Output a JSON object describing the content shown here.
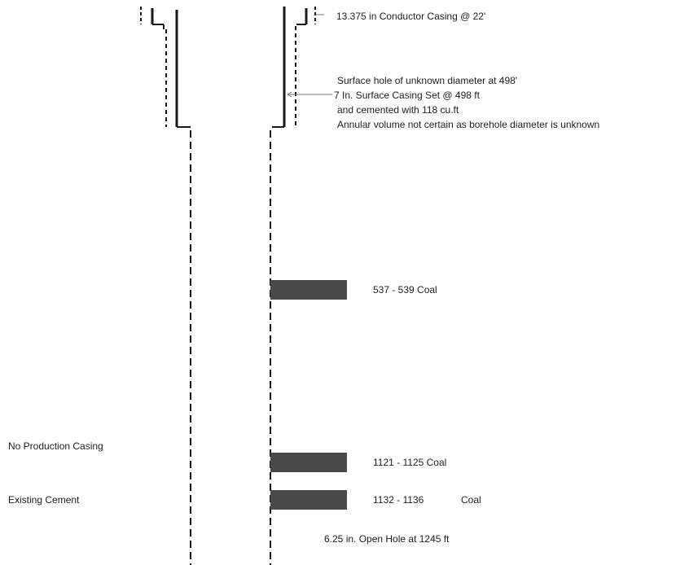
{
  "labels": {
    "conductor": "13.375 in  Conductor Casing  @ 22'",
    "surface_hole": "Surface hole of unknown diameter at 498'",
    "surface_casing": "7 In.  Surface Casing Set @ 498 ft",
    "cement": "and cemented with 118 cu.ft",
    "annular": "Annular volume not certain as borehole diameter is unknown",
    "coal_1": "537 - 539 Coal",
    "no_production": "No Production Casing",
    "coal_2": "1121 - 1125 Coal",
    "existing_cement": "Existing Cement",
    "coal_3_depth": "1132 - 1136",
    "coal_3_type": "Coal",
    "open_hole": "6.25 in. Open Hole at 1245 ft"
  },
  "colors": {
    "line": "#1a1a1a",
    "coal_fill": "#4a4a4a",
    "leader": "#777777"
  }
}
